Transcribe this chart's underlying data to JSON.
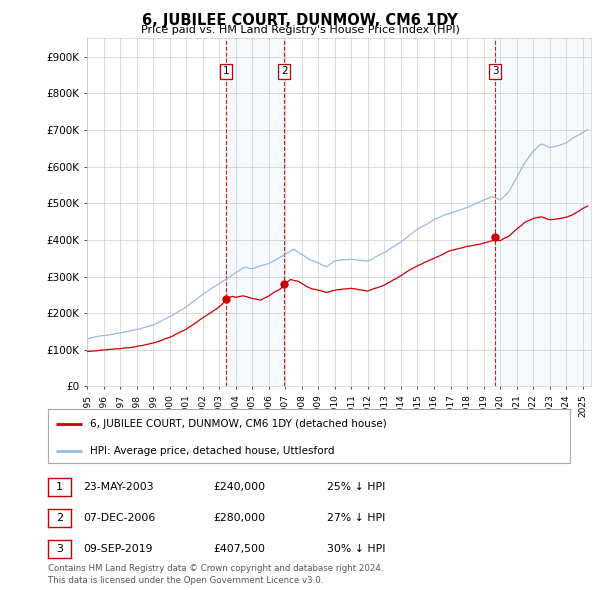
{
  "title": "6, JUBILEE COURT, DUNMOW, CM6 1DY",
  "subtitle": "Price paid vs. HM Land Registry's House Price Index (HPI)",
  "ylabel_ticks": [
    "£0",
    "£100K",
    "£200K",
    "£300K",
    "£400K",
    "£500K",
    "£600K",
    "£700K",
    "£800K",
    "£900K"
  ],
  "ytick_values": [
    0,
    100000,
    200000,
    300000,
    400000,
    500000,
    600000,
    700000,
    800000,
    900000
  ],
  "ylim": [
    0,
    950000
  ],
  "xlim_start": 1995.0,
  "xlim_end": 2025.5,
  "sale_color": "#cc0000",
  "hpi_color": "#99bbdd",
  "hpi_fill_color": "#ddeeff",
  "vline_color": "#cc0000",
  "sale_dates": [
    2003.39,
    2006.93,
    2019.69
  ],
  "sale_prices": [
    240000,
    280000,
    407500
  ],
  "sale_labels": [
    "1",
    "2",
    "3"
  ],
  "legend_sale_label": "6, JUBILEE COURT, DUNMOW, CM6 1DY (detached house)",
  "legend_hpi_label": "HPI: Average price, detached house, Uttlesford",
  "table_data": [
    [
      "1",
      "23-MAY-2003",
      "£240,000",
      "25% ↓ HPI"
    ],
    [
      "2",
      "07-DEC-2006",
      "£280,000",
      "27% ↓ HPI"
    ],
    [
      "3",
      "09-SEP-2019",
      "£407,500",
      "30% ↓ HPI"
    ]
  ],
  "footnote": "Contains HM Land Registry data © Crown copyright and database right 2024.\nThis data is licensed under the Open Government Licence v3.0.",
  "background_color": "#ffffff",
  "plot_bg_color": "#ffffff",
  "grid_color": "#cccccc",
  "x_years": [
    1995,
    1996,
    1997,
    1998,
    1999,
    2000,
    2001,
    2002,
    2003,
    2004,
    2005,
    2006,
    2007,
    2008,
    2009,
    2010,
    2011,
    2012,
    2013,
    2014,
    2015,
    2016,
    2017,
    2018,
    2019,
    2020,
    2021,
    2022,
    2023,
    2024,
    2025
  ]
}
